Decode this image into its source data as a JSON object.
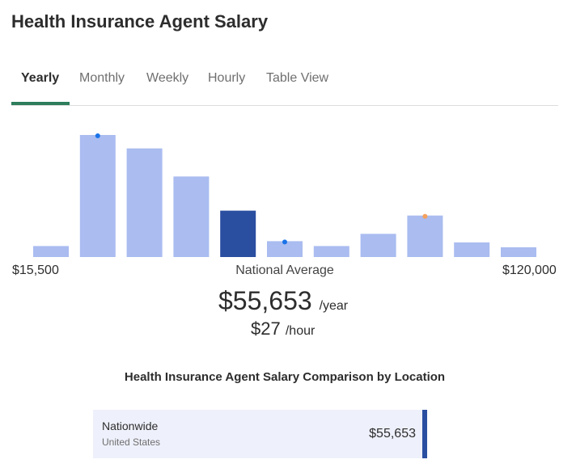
{
  "title": "Health Insurance Agent Salary",
  "tabs": [
    {
      "label": "Yearly",
      "active": true
    },
    {
      "label": "Monthly"
    },
    {
      "label": "Weekly"
    },
    {
      "label": "Hourly"
    },
    {
      "label": "Table View"
    }
  ],
  "chart_data": {
    "type": "bar",
    "title": "",
    "relative_values": [
      9,
      100,
      89,
      66,
      38,
      13,
      9,
      19,
      34,
      12,
      8
    ],
    "highlighted_bar_index": 4,
    "markers": [
      {
        "bar_index": 1,
        "color": "#1a73e8"
      },
      {
        "bar_index": 5,
        "color": "#1a73e8"
      },
      {
        "bar_index": 8,
        "color": "#f4a15d"
      }
    ],
    "x_min_label": "$15,500",
    "x_max_label": "$120,000",
    "center_label": "National Average",
    "bar_color": "#aabcf0",
    "highlight_color": "#2a4ea0",
    "grid": false
  },
  "average": {
    "yearly": "$55,653",
    "yearly_unit": "/year",
    "hourly": "$27",
    "hourly_unit": "/hour"
  },
  "comparison": {
    "title": "Health Insurance Agent Salary Comparison by Location",
    "rows": [
      {
        "name": "Nationwide",
        "sub": "United States",
        "value": "$55,653"
      }
    ]
  }
}
